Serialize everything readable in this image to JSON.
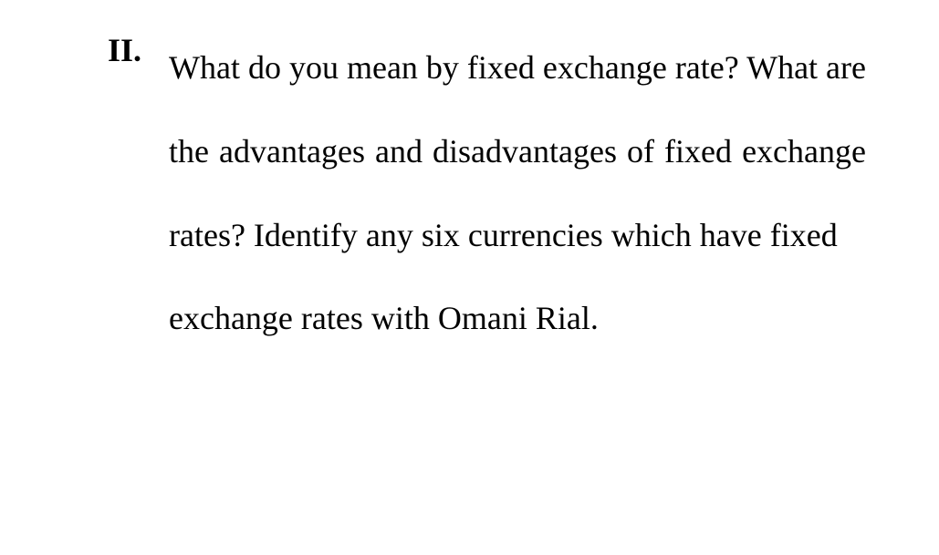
{
  "question": {
    "marker": "II.",
    "text_justified": "What do you mean by fixed exchange rate? What are the advantages and disadvantages of fixed exchange rates? Identify any six currencies which have fixed",
    "text_last_line": "exchange rates with Omani Rial.",
    "font_family": "serif",
    "font_size_pt": 27,
    "font_weight": 500,
    "color": "#000000",
    "background_color": "#ffffff",
    "line_height": 2.55,
    "alignment": "justify"
  }
}
